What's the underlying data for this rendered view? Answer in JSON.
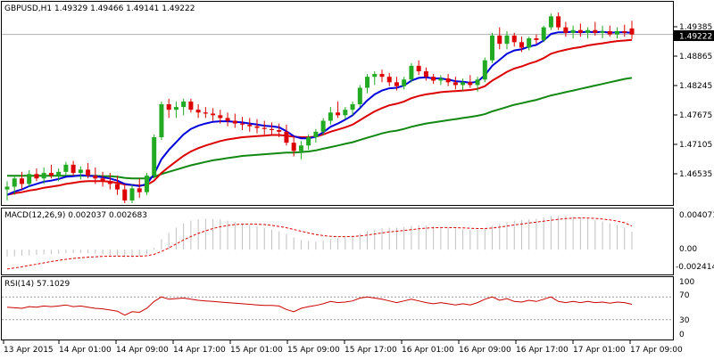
{
  "main_pane": {
    "title": "GBPUSD,H1  1.49329 1.49466 1.49141 1.49222",
    "price_ticks": [
      "1.49385",
      "1.48865",
      "1.48245",
      "1.47675",
      "1.47105",
      "1.46535"
    ],
    "current_price_label": "1.49222"
  },
  "macd_pane": {
    "title": "MACD(12,26,9) 0.002037 0.002683",
    "ticks": [
      "0.004071",
      "0.00",
      "-0.002414"
    ]
  },
  "rsi_pane": {
    "title": "RSI(14) 57.1029",
    "ticks": [
      "100",
      "70",
      "30",
      "0"
    ]
  },
  "time_labels": [
    "13 Apr 2015",
    "14 Apr 01:00",
    "14 Apr 09:00",
    "14 Apr 17:00",
    "15 Apr 01:00",
    "15 Apr 09:00",
    "15 Apr 17:00",
    "16 Apr 01:00",
    "16 Apr 09:00",
    "16 Apr 17:00",
    "17 Apr 01:00",
    "17 Apr 09:00"
  ],
  "colors": {
    "bull_candle": "#22aa22",
    "bear_candle": "#dd0000",
    "ema_fast": "#0000dd",
    "ema_mid": "#dd0000",
    "ema_slow": "#118811",
    "sma_thin": "#006600",
    "macd_hist": "#c0c0c0",
    "macd_signal": "#dd0000",
    "rsi_line": "#cc0000",
    "level_line": "#999999"
  },
  "chart_data": [
    {
      "type": "candlestick",
      "title": "GBPUSD,H1",
      "ylim": [
        1.4615,
        1.4975
      ],
      "candles": [
        {
          "o": 1.464,
          "h": 1.4655,
          "l": 1.462,
          "c": 1.4645
        },
        {
          "o": 1.4645,
          "h": 1.4665,
          "l": 1.463,
          "c": 1.466
        },
        {
          "o": 1.466,
          "h": 1.4672,
          "l": 1.464,
          "c": 1.465
        },
        {
          "o": 1.465,
          "h": 1.4675,
          "l": 1.4645,
          "c": 1.4668
        },
        {
          "o": 1.4668,
          "h": 1.4678,
          "l": 1.4655,
          "c": 1.466
        },
        {
          "o": 1.466,
          "h": 1.468,
          "l": 1.465,
          "c": 1.467
        },
        {
          "o": 1.467,
          "h": 1.4685,
          "l": 1.466,
          "c": 1.4665
        },
        {
          "o": 1.4665,
          "h": 1.4678,
          "l": 1.4655,
          "c": 1.4672
        },
        {
          "o": 1.4672,
          "h": 1.469,
          "l": 1.4665,
          "c": 1.4685
        },
        {
          "o": 1.4685,
          "h": 1.4692,
          "l": 1.4665,
          "c": 1.467
        },
        {
          "o": 1.467,
          "h": 1.4682,
          "l": 1.4658,
          "c": 1.4676
        },
        {
          "o": 1.4676,
          "h": 1.4688,
          "l": 1.466,
          "c": 1.4665
        },
        {
          "o": 1.4665,
          "h": 1.468,
          "l": 1.465,
          "c": 1.466
        },
        {
          "o": 1.466,
          "h": 1.4672,
          "l": 1.4645,
          "c": 1.4655
        },
        {
          "o": 1.4655,
          "h": 1.467,
          "l": 1.464,
          "c": 1.465
        },
        {
          "o": 1.465,
          "h": 1.4665,
          "l": 1.463,
          "c": 1.464
        },
        {
          "o": 1.464,
          "h": 1.465,
          "l": 1.4615,
          "c": 1.462
        },
        {
          "o": 1.462,
          "h": 1.4648,
          "l": 1.4615,
          "c": 1.4642
        },
        {
          "o": 1.4642,
          "h": 1.466,
          "l": 1.4625,
          "c": 1.4635
        },
        {
          "o": 1.4635,
          "h": 1.467,
          "l": 1.463,
          "c": 1.4665
        },
        {
          "o": 1.4665,
          "h": 1.474,
          "l": 1.466,
          "c": 1.4735
        },
        {
          "o": 1.4735,
          "h": 1.48,
          "l": 1.473,
          "c": 1.4795
        },
        {
          "o": 1.4795,
          "h": 1.4805,
          "l": 1.477,
          "c": 1.4785
        },
        {
          "o": 1.4785,
          "h": 1.48,
          "l": 1.477,
          "c": 1.479
        },
        {
          "o": 1.479,
          "h": 1.4805,
          "l": 1.4775,
          "c": 1.48
        },
        {
          "o": 1.48,
          "h": 1.4805,
          "l": 1.478,
          "c": 1.4785
        },
        {
          "o": 1.4785,
          "h": 1.4795,
          "l": 1.477,
          "c": 1.478
        },
        {
          "o": 1.478,
          "h": 1.479,
          "l": 1.477,
          "c": 1.4778
        },
        {
          "o": 1.4778,
          "h": 1.4788,
          "l": 1.4765,
          "c": 1.4775
        },
        {
          "o": 1.4775,
          "h": 1.4785,
          "l": 1.476,
          "c": 1.477
        },
        {
          "o": 1.477,
          "h": 1.478,
          "l": 1.4755,
          "c": 1.4765
        },
        {
          "o": 1.4765,
          "h": 1.4778,
          "l": 1.4752,
          "c": 1.476
        },
        {
          "o": 1.476,
          "h": 1.4772,
          "l": 1.4748,
          "c": 1.4758
        },
        {
          "o": 1.4758,
          "h": 1.477,
          "l": 1.4745,
          "c": 1.4755
        },
        {
          "o": 1.4755,
          "h": 1.4768,
          "l": 1.4742,
          "c": 1.4752
        },
        {
          "o": 1.4752,
          "h": 1.4765,
          "l": 1.474,
          "c": 1.475
        },
        {
          "o": 1.475,
          "h": 1.4762,
          "l": 1.4738,
          "c": 1.4748
        },
        {
          "o": 1.4748,
          "h": 1.476,
          "l": 1.4735,
          "c": 1.4745
        },
        {
          "o": 1.4745,
          "h": 1.4758,
          "l": 1.472,
          "c": 1.4725
        },
        {
          "o": 1.4725,
          "h": 1.4738,
          "l": 1.47,
          "c": 1.471
        },
        {
          "o": 1.471,
          "h": 1.4728,
          "l": 1.4695,
          "c": 1.472
        },
        {
          "o": 1.472,
          "h": 1.474,
          "l": 1.4712,
          "c": 1.4735
        },
        {
          "o": 1.4735,
          "h": 1.475,
          "l": 1.4725,
          "c": 1.4745
        },
        {
          "o": 1.4745,
          "h": 1.477,
          "l": 1.4738,
          "c": 1.4765
        },
        {
          "o": 1.4765,
          "h": 1.479,
          "l": 1.4758,
          "c": 1.478
        },
        {
          "o": 1.478,
          "h": 1.48,
          "l": 1.477,
          "c": 1.4775
        },
        {
          "o": 1.4775,
          "h": 1.479,
          "l": 1.4768,
          "c": 1.4785
        },
        {
          "o": 1.4785,
          "h": 1.48,
          "l": 1.4775,
          "c": 1.4795
        },
        {
          "o": 1.4795,
          "h": 1.483,
          "l": 1.479,
          "c": 1.4825
        },
        {
          "o": 1.4825,
          "h": 1.485,
          "l": 1.4815,
          "c": 1.4845
        },
        {
          "o": 1.4845,
          "h": 1.4855,
          "l": 1.483,
          "c": 1.485
        },
        {
          "o": 1.485,
          "h": 1.4858,
          "l": 1.4835,
          "c": 1.4845
        },
        {
          "o": 1.4845,
          "h": 1.4852,
          "l": 1.4828,
          "c": 1.4835
        },
        {
          "o": 1.4835,
          "h": 1.4845,
          "l": 1.482,
          "c": 1.4828
        },
        {
          "o": 1.4828,
          "h": 1.4845,
          "l": 1.4822,
          "c": 1.484
        },
        {
          "o": 1.484,
          "h": 1.487,
          "l": 1.4835,
          "c": 1.4865
        },
        {
          "o": 1.4865,
          "h": 1.4875,
          "l": 1.4848,
          "c": 1.4855
        },
        {
          "o": 1.4855,
          "h": 1.4862,
          "l": 1.4838,
          "c": 1.4845
        },
        {
          "o": 1.4845,
          "h": 1.485,
          "l": 1.4832,
          "c": 1.4838
        },
        {
          "o": 1.4838,
          "h": 1.4848,
          "l": 1.483,
          "c": 1.4842
        },
        {
          "o": 1.4842,
          "h": 1.485,
          "l": 1.4828,
          "c": 1.4835
        },
        {
          "o": 1.4835,
          "h": 1.4845,
          "l": 1.4822,
          "c": 1.483
        },
        {
          "o": 1.483,
          "h": 1.4842,
          "l": 1.482,
          "c": 1.4835
        },
        {
          "o": 1.4835,
          "h": 1.4848,
          "l": 1.4825,
          "c": 1.483
        },
        {
          "o": 1.483,
          "h": 1.4845,
          "l": 1.4818,
          "c": 1.484
        },
        {
          "o": 1.484,
          "h": 1.488,
          "l": 1.4835,
          "c": 1.4875
        },
        {
          "o": 1.4875,
          "h": 1.4925,
          "l": 1.487,
          "c": 1.492
        },
        {
          "o": 1.492,
          "h": 1.4935,
          "l": 1.4895,
          "c": 1.4905
        },
        {
          "o": 1.4905,
          "h": 1.4928,
          "l": 1.4895,
          "c": 1.492
        },
        {
          "o": 1.492,
          "h": 1.4925,
          "l": 1.49,
          "c": 1.4908
        },
        {
          "o": 1.4908,
          "h": 1.4918,
          "l": 1.489,
          "c": 1.4898
        },
        {
          "o": 1.4898,
          "h": 1.4918,
          "l": 1.4893,
          "c": 1.4915
        },
        {
          "o": 1.4915,
          "h": 1.4922,
          "l": 1.4905,
          "c": 1.4912
        },
        {
          "o": 1.4912,
          "h": 1.4938,
          "l": 1.4908,
          "c": 1.4935
        },
        {
          "o": 1.4935,
          "h": 1.496,
          "l": 1.493,
          "c": 1.4955
        },
        {
          "o": 1.4955,
          "h": 1.4962,
          "l": 1.493,
          "c": 1.4935
        },
        {
          "o": 1.4935,
          "h": 1.4945,
          "l": 1.4918,
          "c": 1.4925
        },
        {
          "o": 1.4925,
          "h": 1.4938,
          "l": 1.4915,
          "c": 1.493
        },
        {
          "o": 1.493,
          "h": 1.4942,
          "l": 1.4918,
          "c": 1.4925
        },
        {
          "o": 1.4925,
          "h": 1.4935,
          "l": 1.4915,
          "c": 1.493
        },
        {
          "o": 1.493,
          "h": 1.4945,
          "l": 1.492,
          "c": 1.4925
        },
        {
          "o": 1.4925,
          "h": 1.4938,
          "l": 1.4915,
          "c": 1.4928
        },
        {
          "o": 1.4928,
          "h": 1.4938,
          "l": 1.4918,
          "c": 1.4922
        },
        {
          "o": 1.4922,
          "h": 1.4935,
          "l": 1.4915,
          "c": 1.4928
        },
        {
          "o": 1.4928,
          "h": 1.494,
          "l": 1.4918,
          "c": 1.4925
        },
        {
          "o": 1.4933,
          "h": 1.4947,
          "l": 1.4914,
          "c": 1.4922
        }
      ],
      "ema_fast": [
        1.463,
        1.4636,
        1.464,
        1.4646,
        1.465,
        1.4654,
        1.4656,
        1.4659,
        1.4663,
        1.4664,
        1.4666,
        1.4665,
        1.4664,
        1.4662,
        1.466,
        1.4656,
        1.465,
        1.4648,
        1.4646,
        1.465,
        1.4668,
        1.4695,
        1.4712,
        1.4726,
        1.474,
        1.475,
        1.4756,
        1.476,
        1.4763,
        1.4764,
        1.4764,
        1.4763,
        1.4762,
        1.476,
        1.4758,
        1.4756,
        1.4755,
        1.4753,
        1.4746,
        1.4737,
        1.4733,
        1.4733,
        1.4736,
        1.4744,
        1.4754,
        1.476,
        1.4767,
        1.4775,
        1.4788,
        1.4802,
        1.4813,
        1.482,
        1.4824,
        1.4825,
        1.4829,
        1.4838,
        1.4843,
        1.4844,
        1.4842,
        1.4842,
        1.484,
        1.4837,
        1.4836,
        1.4834,
        1.4836,
        1.4848,
        1.4865,
        1.4876,
        1.4887,
        1.4893,
        1.4895,
        1.49,
        1.4903,
        1.4911,
        1.4923,
        1.4926,
        1.4926,
        1.4927,
        1.4926,
        1.4927,
        1.4926,
        1.4927,
        1.4925,
        1.4926,
        1.4926,
        1.4925
      ],
      "ema_mid": [
        1.463,
        1.4633,
        1.4635,
        1.4638,
        1.464,
        1.4643,
        1.4645,
        1.4647,
        1.465,
        1.4652,
        1.4654,
        1.4655,
        1.4655,
        1.4655,
        1.4654,
        1.4652,
        1.4649,
        1.4648,
        1.4647,
        1.4648,
        1.4656,
        1.467,
        1.4681,
        1.4691,
        1.4701,
        1.4709,
        1.4715,
        1.472,
        1.4724,
        1.4728,
        1.4731,
        1.4733,
        1.4735,
        1.4736,
        1.4737,
        1.4738,
        1.4739,
        1.4739,
        1.4738,
        1.4736,
        1.4735,
        1.4735,
        1.4736,
        1.474,
        1.4745,
        1.4749,
        1.4753,
        1.4758,
        1.4766,
        1.4774,
        1.4782,
        1.4788,
        1.4793,
        1.4796,
        1.48,
        1.4806,
        1.481,
        1.4813,
        1.4815,
        1.4817,
        1.4818,
        1.4819,
        1.482,
        1.4821,
        1.4823,
        1.4828,
        1.4838,
        1.4846,
        1.4854,
        1.486,
        1.4864,
        1.4869,
        1.4873,
        1.4879,
        1.4887,
        1.4891,
        1.4894,
        1.4897,
        1.4899,
        1.4902,
        1.4904,
        1.4906,
        1.4908,
        1.491,
        1.4911,
        1.4912
      ],
      "ema_slow": [
        1.4665,
        1.4665,
        1.4665,
        1.4665,
        1.4665,
        1.4665,
        1.4665,
        1.4665,
        1.4665,
        1.4665,
        1.4665,
        1.4665,
        1.4665,
        1.4664,
        1.4664,
        1.4663,
        1.4661,
        1.466,
        1.466,
        1.466,
        1.4663,
        1.4668,
        1.4672,
        1.4676,
        1.468,
        1.4684,
        1.4687,
        1.469,
        1.4693,
        1.4695,
        1.4697,
        1.4699,
        1.4701,
        1.4702,
        1.4703,
        1.4704,
        1.4705,
        1.4706,
        1.4707,
        1.4707,
        1.4708,
        1.4709,
        1.4711,
        1.4714,
        1.4717,
        1.472,
        1.4723,
        1.4726,
        1.473,
        1.4734,
        1.4738,
        1.4742,
        1.4745,
        1.4747,
        1.475,
        1.4754,
        1.4757,
        1.476,
        1.4762,
        1.4764,
        1.4766,
        1.4768,
        1.477,
        1.4772,
        1.4774,
        1.4777,
        1.4782,
        1.4786,
        1.479,
        1.4794,
        1.4797,
        1.48,
        1.4803,
        1.4807,
        1.4811,
        1.4814,
        1.4817,
        1.482,
        1.4823,
        1.4826,
        1.4829,
        1.4832,
        1.4835,
        1.4838,
        1.4841,
        1.4843
      ]
    },
    {
      "type": "bar",
      "title": "MACD(12,26,9)",
      "ylim": [
        -0.002414,
        0.004071
      ],
      "histogram": [
        -0.0008,
        -0.00075,
        -0.0007,
        -0.00065,
        -0.0006,
        -0.00055,
        -0.0005,
        -0.00045,
        -0.0004,
        -0.00038,
        -0.00036,
        -0.0004,
        -0.00045,
        -0.00052,
        -0.0006,
        -0.0007,
        -0.00085,
        -0.0008,
        -0.00075,
        -0.0005,
        0.0002,
        0.0012,
        0.0019,
        0.0025,
        0.003,
        0.0033,
        0.00345,
        0.00352,
        0.0035,
        0.00342,
        0.0033,
        0.00315,
        0.003,
        0.00285,
        0.0027,
        0.0025,
        0.0023,
        0.0021,
        0.0018,
        0.0014,
        0.0011,
        0.00095,
        0.0009,
        0.001,
        0.0012,
        0.0013,
        0.0014,
        0.00155,
        0.0018,
        0.0021,
        0.0023,
        0.00245,
        0.0025,
        0.0025,
        0.00255,
        0.0027,
        0.00278,
        0.00275,
        0.00265,
        0.00258,
        0.0025,
        0.0024,
        0.00232,
        0.00225,
        0.00225,
        0.0024,
        0.0027,
        0.00295,
        0.00315,
        0.0033,
        0.00338,
        0.00345,
        0.00352,
        0.00365,
        0.0038,
        0.00385,
        0.00382,
        0.00376,
        0.00365,
        0.00352,
        0.00338,
        0.0032,
        0.003,
        0.0028,
        0.0025,
        0.00204
      ],
      "signal": [
        -0.0022,
        -0.00208,
        -0.00195,
        -0.0018,
        -0.00165,
        -0.0015,
        -0.00135,
        -0.00122,
        -0.0011,
        -0.001,
        -0.00092,
        -0.00085,
        -0.0008,
        -0.00076,
        -0.00074,
        -0.00073,
        -0.00074,
        -0.00075,
        -0.00074,
        -0.00069,
        -0.00053,
        -0.0002,
        0.0002,
        0.00065,
        0.0011,
        0.0015,
        0.00185,
        0.00215,
        0.0024,
        0.0026,
        0.00275,
        0.00285,
        0.0029,
        0.00292,
        0.0029,
        0.00285,
        0.00276,
        0.00264,
        0.00249,
        0.0023,
        0.0021,
        0.0019,
        0.00172,
        0.0016,
        0.00152,
        0.00148,
        0.00148,
        0.0015,
        0.00156,
        0.00166,
        0.00178,
        0.0019,
        0.00201,
        0.0021,
        0.00219,
        0.00228,
        0.00237,
        0.00245,
        0.00249,
        0.00251,
        0.00251,
        0.0025,
        0.00247,
        0.00243,
        0.0024,
        0.0024,
        0.00246,
        0.00256,
        0.00268,
        0.00281,
        0.00292,
        0.00303,
        0.00313,
        0.00324,
        0.00335,
        0.00345,
        0.00353,
        0.00358,
        0.0036,
        0.00359,
        0.00355,
        0.00348,
        0.00338,
        0.00325,
        0.00307,
        0.00268
      ]
    },
    {
      "type": "line",
      "title": "RSI(14)",
      "ylim": [
        0,
        100
      ],
      "levels": [
        70,
        30
      ],
      "values": [
        52,
        51,
        50,
        53,
        52,
        54,
        53,
        54,
        56,
        53,
        54,
        52,
        50,
        49,
        47,
        45,
        38,
        44,
        43,
        50,
        62,
        70,
        66,
        67,
        68,
        66,
        64,
        63,
        62,
        61,
        60,
        59,
        58,
        57,
        56,
        55,
        55,
        54,
        48,
        44,
        50,
        53,
        55,
        58,
        62,
        60,
        61,
        63,
        68,
        70,
        68,
        66,
        63,
        60,
        63,
        66,
        63,
        60,
        58,
        60,
        58,
        56,
        58,
        56,
        60,
        66,
        70,
        64,
        67,
        62,
        61,
        64,
        62,
        66,
        70,
        62,
        60,
        62,
        60,
        62,
        60,
        61,
        59,
        61,
        60,
        57
      ]
    }
  ]
}
